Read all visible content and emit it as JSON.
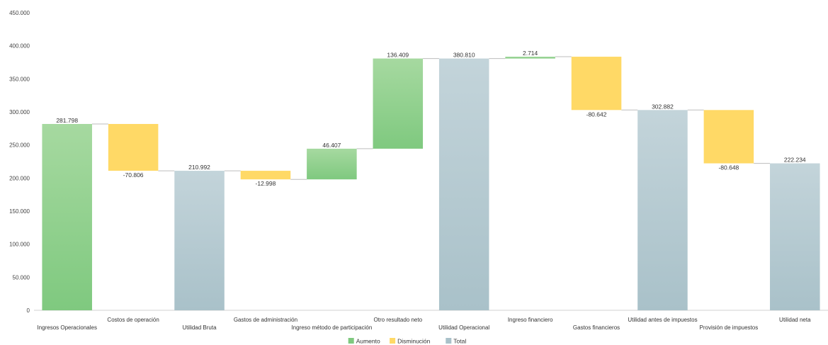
{
  "chart_data": {
    "type": "waterfall",
    "categories": [
      "Ingresos Operacionales",
      "Costos de operación",
      "Utilidad Bruta",
      "Gastos de administración",
      "Ingreso método de participación",
      "Otro resultado neto",
      "Utilidad Operacional",
      "Ingreso financiero",
      "Gastos financieros",
      "Utilidad antes de impuestos",
      "Provisión de impuestos",
      "Utilidad neta"
    ],
    "values": [
      281798,
      -70806,
      210992,
      -12998,
      46407,
      136409,
      380810,
      2714,
      -80642,
      302882,
      -80648,
      222234
    ],
    "kinds": [
      "increase",
      "decrease",
      "total",
      "decrease",
      "increase",
      "increase",
      "total",
      "increase",
      "decrease",
      "total",
      "decrease",
      "total"
    ],
    "data_labels": [
      "281.798",
      "-70.806",
      "210.992",
      "-12.998",
      "46.407",
      "136.409",
      "380.810",
      "2.714",
      "-80.642",
      "302.882",
      "-80.648",
      "222.234"
    ],
    "ylim": [
      0,
      450000
    ],
    "yticks": [
      0,
      50000,
      100000,
      150000,
      200000,
      250000,
      300000,
      350000,
      400000,
      450000
    ],
    "ytick_labels": [
      "0",
      "50.000",
      "100.000",
      "150.000",
      "200.000",
      "250.000",
      "300.000",
      "350.000",
      "400.000",
      "450.000"
    ],
    "legend": [
      {
        "name": "Aumento",
        "color": "#7fc97f"
      },
      {
        "name": "Disminución",
        "color": "#ffd966"
      },
      {
        "name": "Total",
        "color": "#a9c1c9"
      }
    ],
    "legend_position": "bottom",
    "grid": false,
    "colors": {
      "increase": "#7fc97f",
      "decrease": "#ffd966",
      "total": "#a9c1c9"
    }
  }
}
